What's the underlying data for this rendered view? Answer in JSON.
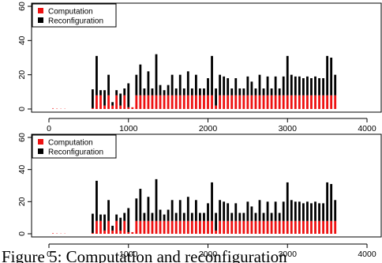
{
  "chart_data": [
    {
      "type": "bar",
      "stacked": true,
      "xlim": [
        0,
        4200
      ],
      "ylim": [
        0,
        60
      ],
      "xticks": [
        0,
        1000,
        2000,
        3000,
        4000
      ],
      "yticks": [
        0,
        20,
        40,
        60
      ],
      "legend": {
        "position": "top-left",
        "entries": [
          {
            "label": "Computation",
            "color": "#ee1111"
          },
          {
            "label": "Reconfiguration",
            "color": "#000000"
          }
        ]
      },
      "x": [
        50,
        100,
        150,
        200,
        550,
        600,
        650,
        700,
        750,
        800,
        850,
        900,
        950,
        1000,
        1050,
        1100,
        1150,
        1200,
        1250,
        1300,
        1350,
        1400,
        1450,
        1500,
        1550,
        1600,
        1650,
        1700,
        1750,
        1800,
        1850,
        1900,
        1950,
        2000,
        2050,
        2100,
        2150,
        2200,
        2250,
        2300,
        2350,
        2400,
        2450,
        2500,
        2550,
        2600,
        2650,
        2700,
        2750,
        2800,
        2850,
        2900,
        2950,
        3000,
        3050,
        3100,
        3150,
        3200,
        3250,
        3300,
        3350,
        3400,
        3450,
        3500,
        3550,
        3600
      ],
      "series": [
        {
          "name": "Computation",
          "values": [
            0.5,
            0.3,
            0.2,
            0.2,
            0.5,
            8,
            8,
            2,
            8,
            2,
            8,
            2,
            8,
            1,
            1,
            8,
            8,
            8,
            8,
            8,
            8,
            8,
            8,
            8,
            8,
            8,
            8,
            8,
            8,
            8,
            8,
            8,
            8,
            8,
            8,
            2,
            8,
            8,
            8,
            8,
            8,
            8,
            8,
            8,
            8,
            8,
            8,
            8,
            8,
            8,
            8,
            8,
            8,
            8,
            8,
            8,
            8,
            8,
            8,
            8,
            8,
            8,
            8,
            8,
            8,
            8
          ]
        },
        {
          "name": "Reconfiguration",
          "values": [
            0,
            0,
            0,
            0,
            11,
            23,
            3,
            9,
            12,
            2,
            3,
            7,
            4,
            14,
            0,
            12,
            18,
            4,
            14,
            4,
            24,
            6,
            3,
            6,
            12,
            4,
            12,
            4,
            14,
            4,
            12,
            4,
            4,
            10,
            23,
            10,
            12,
            11,
            10,
            4,
            10,
            4,
            4,
            11,
            8,
            4,
            12,
            4,
            11,
            4,
            11,
            4,
            11,
            23,
            12,
            11,
            11,
            10,
            11,
            10,
            11,
            10,
            10,
            23,
            22,
            12
          ]
        }
      ]
    },
    {
      "type": "bar",
      "stacked": true,
      "xlim": [
        0,
        4200
      ],
      "ylim": [
        0,
        60
      ],
      "xticks": [
        0,
        1000,
        2000,
        3000,
        4000
      ],
      "yticks": [
        0,
        20,
        40,
        60
      ],
      "legend": {
        "position": "top-left",
        "entries": [
          {
            "label": "Computation",
            "color": "#ee1111"
          },
          {
            "label": "Reconfiguration",
            "color": "#000000"
          }
        ]
      },
      "x": [
        50,
        100,
        150,
        200,
        550,
        600,
        650,
        700,
        750,
        800,
        850,
        900,
        950,
        1000,
        1050,
        1100,
        1150,
        1200,
        1250,
        1300,
        1350,
        1400,
        1450,
        1500,
        1550,
        1600,
        1650,
        1700,
        1750,
        1800,
        1850,
        1900,
        1950,
        2000,
        2050,
        2100,
        2150,
        2200,
        2250,
        2300,
        2350,
        2400,
        2450,
        2500,
        2550,
        2600,
        2650,
        2700,
        2750,
        2800,
        2850,
        2900,
        2950,
        3000,
        3050,
        3100,
        3150,
        3200,
        3250,
        3300,
        3350,
        3400,
        3450,
        3500,
        3550,
        3600
      ],
      "series": [
        {
          "name": "Computation",
          "values": [
            0.5,
            0.3,
            0.2,
            0.2,
            0.5,
            8,
            8,
            2,
            8,
            2,
            8,
            2,
            8,
            1,
            1,
            8,
            8,
            8,
            8,
            8,
            8,
            8,
            8,
            8,
            8,
            8,
            8,
            8,
            8,
            8,
            8,
            8,
            8,
            8,
            8,
            2,
            8,
            8,
            8,
            8,
            8,
            8,
            8,
            8,
            8,
            8,
            8,
            8,
            8,
            8,
            8,
            8,
            8,
            8,
            8,
            8,
            8,
            8,
            8,
            8,
            8,
            8,
            8,
            8,
            8,
            8
          ]
        },
        {
          "name": "Reconfiguration",
          "values": [
            0,
            0,
            0,
            0,
            12,
            25,
            4,
            10,
            13,
            3,
            4,
            8,
            5,
            15,
            0,
            14,
            20,
            5,
            15,
            5,
            26,
            7,
            4,
            7,
            13,
            5,
            13,
            5,
            15,
            5,
            13,
            5,
            5,
            11,
            24,
            11,
            13,
            12,
            11,
            5,
            11,
            5,
            5,
            12,
            9,
            5,
            13,
            5,
            12,
            5,
            12,
            5,
            12,
            24,
            13,
            12,
            12,
            11,
            12,
            11,
            12,
            11,
            11,
            24,
            23,
            13
          ]
        }
      ]
    }
  ],
  "caption": "Figure 5: Computation and reconfiguration"
}
